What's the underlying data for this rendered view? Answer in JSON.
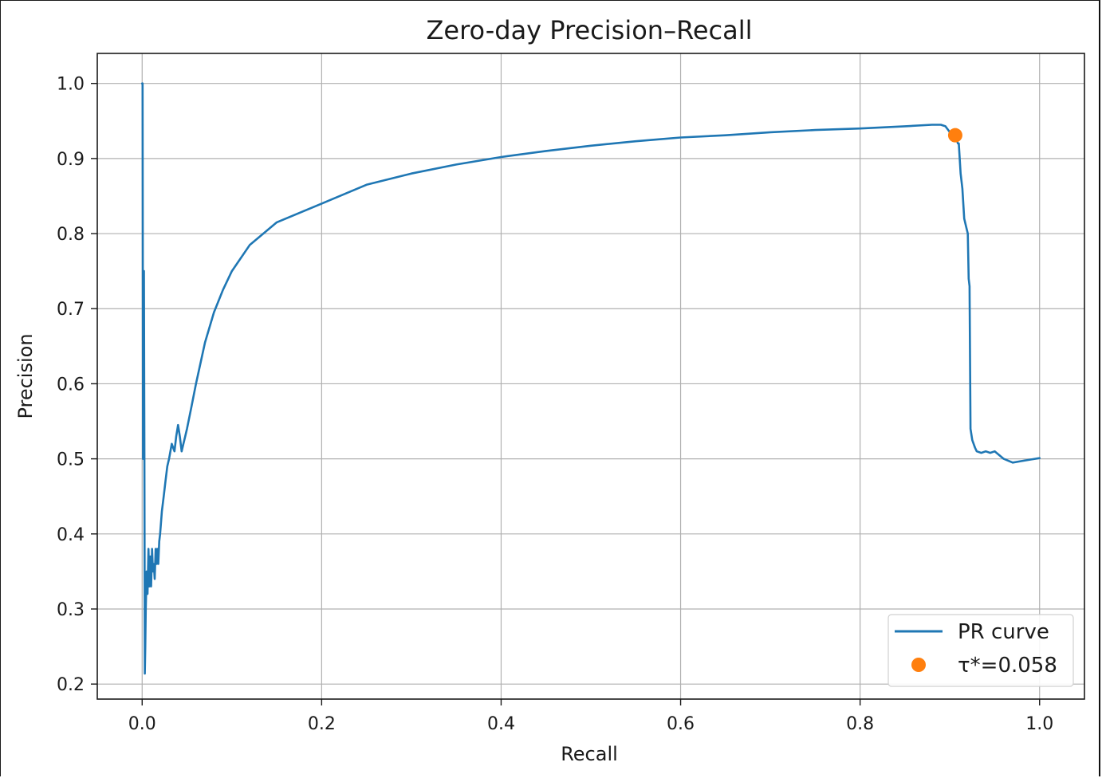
{
  "chart_data": {
    "type": "line",
    "title": "Zero-day Precision–Recall",
    "xlabel": "Recall",
    "ylabel": "Precision",
    "xlim": [
      -0.05,
      1.05
    ],
    "ylim": [
      0.18,
      1.04
    ],
    "xticks": [
      0.0,
      0.2,
      0.4,
      0.6,
      0.8,
      1.0
    ],
    "xtick_labels": [
      "0.0",
      "0.2",
      "0.4",
      "0.6",
      "0.8",
      "1.0"
    ],
    "yticks": [
      0.2,
      0.3,
      0.4,
      0.5,
      0.6,
      0.7,
      0.8,
      0.9,
      1.0
    ],
    "ytick_labels": [
      "0.2",
      "0.3",
      "0.4",
      "0.5",
      "0.6",
      "0.7",
      "0.8",
      "0.9",
      "1.0"
    ],
    "grid": true,
    "legend_position": "bottom-right",
    "series": [
      {
        "name": "PR curve",
        "kind": "line",
        "color": "#1f77b4",
        "x": [
          0.0,
          0.0005,
          0.001,
          0.001,
          0.0015,
          0.002,
          0.0025,
          0.003,
          0.0035,
          0.004,
          0.005,
          0.006,
          0.007,
          0.008,
          0.009,
          0.01,
          0.011,
          0.012,
          0.013,
          0.014,
          0.015,
          0.016,
          0.017,
          0.018,
          0.019,
          0.02,
          0.022,
          0.024,
          0.026,
          0.028,
          0.03,
          0.033,
          0.036,
          0.038,
          0.04,
          0.042,
          0.044,
          0.046,
          0.048,
          0.05,
          0.055,
          0.06,
          0.07,
          0.08,
          0.09,
          0.1,
          0.12,
          0.15,
          0.18,
          0.2,
          0.25,
          0.3,
          0.35,
          0.4,
          0.45,
          0.5,
          0.55,
          0.57,
          0.6,
          0.65,
          0.7,
          0.75,
          0.8,
          0.85,
          0.88,
          0.89,
          0.895,
          0.9,
          0.905,
          0.907,
          0.909,
          0.91,
          0.912,
          0.914,
          0.916,
          0.918,
          0.92,
          0.921,
          0.922,
          0.923,
          0.925,
          0.928,
          0.93,
          0.935,
          0.94,
          0.945,
          0.95,
          0.96,
          0.97,
          0.98,
          0.99,
          1.0
        ],
        "y": [
          1.0,
          1.0,
          0.5,
          0.75,
          0.5,
          0.75,
          0.5,
          0.214,
          0.25,
          0.3,
          0.35,
          0.32,
          0.38,
          0.33,
          0.37,
          0.33,
          0.38,
          0.35,
          0.36,
          0.34,
          0.38,
          0.36,
          0.38,
          0.36,
          0.39,
          0.4,
          0.43,
          0.45,
          0.47,
          0.49,
          0.5,
          0.52,
          0.51,
          0.53,
          0.545,
          0.53,
          0.51,
          0.52,
          0.53,
          0.54,
          0.57,
          0.6,
          0.655,
          0.695,
          0.725,
          0.75,
          0.785,
          0.815,
          0.83,
          0.84,
          0.865,
          0.88,
          0.892,
          0.902,
          0.91,
          0.917,
          0.923,
          0.925,
          0.928,
          0.931,
          0.935,
          0.938,
          0.94,
          0.943,
          0.945,
          0.945,
          0.943,
          0.935,
          0.935,
          0.927,
          0.92,
          0.92,
          0.88,
          0.86,
          0.82,
          0.81,
          0.8,
          0.74,
          0.73,
          0.54,
          0.525,
          0.515,
          0.51,
          0.508,
          0.51,
          0.508,
          0.51,
          0.5,
          0.495,
          0.497,
          0.499,
          0.501
        ]
      },
      {
        "name": "τ*=0.058",
        "kind": "point",
        "color": "#ff7f0e",
        "x": [
          0.906
        ],
        "y": [
          0.931
        ]
      }
    ]
  }
}
